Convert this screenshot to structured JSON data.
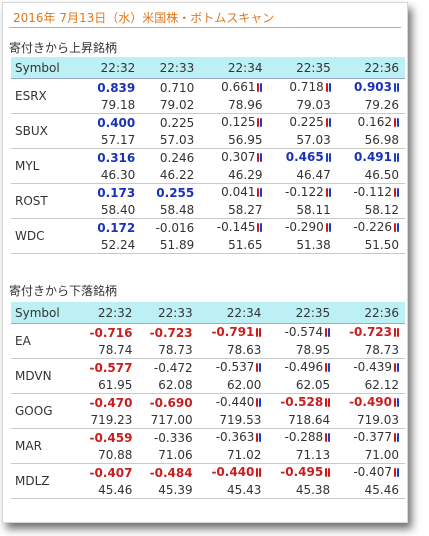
{
  "title": "2016年 7月13日（水）米国株・ボトムスキャン",
  "colors": {
    "title": "#e0771a",
    "header_bg": "#bdf0f5",
    "positive": "#1a32b8",
    "negative": "#c81e1e"
  },
  "sections": [
    {
      "heading": "寄付きから上昇銘柄",
      "columns": [
        "Symbol",
        "22:32",
        "22:33",
        "22:34",
        "22:35",
        "22:36"
      ],
      "rows": [
        {
          "symbol": "ESRX",
          "changes": [
            {
              "v": "0.839",
              "style": "pos",
              "ind": ""
            },
            {
              "v": "0.710",
              "style": "",
              "ind": ""
            },
            {
              "v": "0.661",
              "style": "",
              "ind": "rb"
            },
            {
              "v": "0.718",
              "style": "",
              "ind": "rb"
            },
            {
              "v": "0.903",
              "style": "pos",
              "ind": "bb"
            }
          ],
          "prices": [
            "79.18",
            "79.02",
            "78.96",
            "79.03",
            "79.26"
          ]
        },
        {
          "symbol": "SBUX",
          "changes": [
            {
              "v": "0.400",
              "style": "pos",
              "ind": ""
            },
            {
              "v": "0.225",
              "style": "",
              "ind": ""
            },
            {
              "v": "0.125",
              "style": "",
              "ind": "rb"
            },
            {
              "v": "0.225",
              "style": "",
              "ind": "rb"
            },
            {
              "v": "0.162",
              "style": "",
              "ind": "rb"
            }
          ],
          "prices": [
            "57.17",
            "57.03",
            "56.95",
            "57.03",
            "56.98"
          ]
        },
        {
          "symbol": "MYL",
          "changes": [
            {
              "v": "0.316",
              "style": "pos",
              "ind": ""
            },
            {
              "v": "0.246",
              "style": "",
              "ind": ""
            },
            {
              "v": "0.307",
              "style": "",
              "ind": "rb"
            },
            {
              "v": "0.465",
              "style": "pos",
              "ind": "bb"
            },
            {
              "v": "0.491",
              "style": "pos",
              "ind": "bb"
            }
          ],
          "prices": [
            "46.30",
            "46.22",
            "46.29",
            "46.47",
            "46.50"
          ]
        },
        {
          "symbol": "ROST",
          "changes": [
            {
              "v": "0.173",
              "style": "pos",
              "ind": ""
            },
            {
              "v": "0.255",
              "style": "pos",
              "ind": ""
            },
            {
              "v": "0.041",
              "style": "",
              "ind": "rb"
            },
            {
              "v": "-0.122",
              "style": "",
              "ind": "rb"
            },
            {
              "v": "-0.112",
              "style": "",
              "ind": "rb"
            }
          ],
          "prices": [
            "58.40",
            "58.48",
            "58.27",
            "58.11",
            "58.12"
          ]
        },
        {
          "symbol": "WDC",
          "changes": [
            {
              "v": "0.172",
              "style": "pos",
              "ind": ""
            },
            {
              "v": "-0.016",
              "style": "",
              "ind": ""
            },
            {
              "v": "-0.145",
              "style": "",
              "ind": "rb"
            },
            {
              "v": "-0.290",
              "style": "",
              "ind": "rb"
            },
            {
              "v": "-0.226",
              "style": "",
              "ind": "rb"
            }
          ],
          "prices": [
            "52.24",
            "51.89",
            "51.65",
            "51.38",
            "51.50"
          ]
        }
      ]
    },
    {
      "heading": "寄付きから下落銘柄",
      "columns": [
        "Symbol",
        "22:32",
        "22:33",
        "22:34",
        "22:35",
        "22:36"
      ],
      "rows": [
        {
          "symbol": "EA",
          "changes": [
            {
              "v": "-0.716",
              "style": "neg",
              "ind": ""
            },
            {
              "v": "-0.723",
              "style": "neg",
              "ind": ""
            },
            {
              "v": "-0.791",
              "style": "neg",
              "ind": "rr"
            },
            {
              "v": "-0.574",
              "style": "",
              "ind": "rb"
            },
            {
              "v": "-0.723",
              "style": "neg",
              "ind": "rr"
            }
          ],
          "prices": [
            "78.74",
            "78.73",
            "78.63",
            "78.95",
            "78.73"
          ]
        },
        {
          "symbol": "MDVN",
          "changes": [
            {
              "v": "-0.577",
              "style": "neg",
              "ind": ""
            },
            {
              "v": "-0.472",
              "style": "",
              "ind": ""
            },
            {
              "v": "-0.537",
              "style": "",
              "ind": "rb"
            },
            {
              "v": "-0.496",
              "style": "",
              "ind": "rb"
            },
            {
              "v": "-0.439",
              "style": "",
              "ind": "rb"
            }
          ],
          "prices": [
            "61.95",
            "62.08",
            "62.00",
            "62.05",
            "62.12"
          ]
        },
        {
          "symbol": "GOOG",
          "changes": [
            {
              "v": "-0.470",
              "style": "neg",
              "ind": ""
            },
            {
              "v": "-0.690",
              "style": "neg",
              "ind": ""
            },
            {
              "v": "-0.440",
              "style": "",
              "ind": "rb"
            },
            {
              "v": "-0.528",
              "style": "neg",
              "ind": "rr"
            },
            {
              "v": "-0.490",
              "style": "neg",
              "ind": "rb"
            }
          ],
          "prices": [
            "719.23",
            "717.00",
            "719.53",
            "718.64",
            "719.03"
          ]
        },
        {
          "symbol": "MAR",
          "changes": [
            {
              "v": "-0.459",
              "style": "neg",
              "ind": ""
            },
            {
              "v": "-0.336",
              "style": "",
              "ind": ""
            },
            {
              "v": "-0.363",
              "style": "",
              "ind": "rb"
            },
            {
              "v": "-0.288",
              "style": "",
              "ind": "rb"
            },
            {
              "v": "-0.377",
              "style": "",
              "ind": "rb"
            }
          ],
          "prices": [
            "70.88",
            "71.06",
            "71.02",
            "71.13",
            "71.00"
          ]
        },
        {
          "symbol": "MDLZ",
          "changes": [
            {
              "v": "-0.407",
              "style": "neg",
              "ind": ""
            },
            {
              "v": "-0.484",
              "style": "neg",
              "ind": ""
            },
            {
              "v": "-0.440",
              "style": "neg",
              "ind": "rr"
            },
            {
              "v": "-0.495",
              "style": "neg",
              "ind": "rr"
            },
            {
              "v": "-0.407",
              "style": "",
              "ind": "rb"
            }
          ],
          "prices": [
            "45.46",
            "45.39",
            "45.43",
            "45.38",
            "45.46"
          ]
        }
      ]
    }
  ]
}
